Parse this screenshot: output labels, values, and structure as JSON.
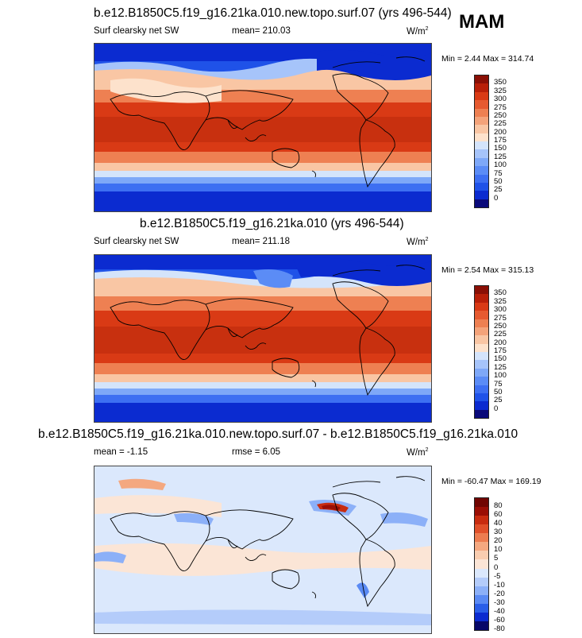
{
  "season": "MAM",
  "panels": [
    {
      "title": "b.e12.B1850C5.f19_g16.21ka.010.new.topo.surf.07 (yrs 496-544)",
      "variable": "Surf clearsky net SW",
      "stat": "mean= 210.03",
      "units": "W/m",
      "units_sup": "2",
      "minmax": "Min =   2.44  Max = 314.74",
      "colorbar_labels": [
        "350",
        "325",
        "300",
        "275",
        "250",
        "225",
        "200",
        "175",
        "150",
        "125",
        "100",
        "75",
        "50",
        "25",
        "0"
      ]
    },
    {
      "title": "b.e12.B1850C5.f19_g16.21ka.010 (yrs 496-544)",
      "variable": "Surf clearsky net SW",
      "stat": "mean= 211.18",
      "units": "W/m",
      "units_sup": "2",
      "minmax": "Min =   2.54  Max = 315.13",
      "colorbar_labels": [
        "350",
        "325",
        "300",
        "275",
        "250",
        "225",
        "200",
        "175",
        "150",
        "125",
        "100",
        "75",
        "50",
        "25",
        "0"
      ]
    },
    {
      "title": "b.e12.B1850C5.f19_g16.21ka.010.new.topo.surf.07 - b.e12.B1850C5.f19_g16.21ka.010",
      "stat_mean": "mean =  -1.15",
      "stat_rmse": "rmse =   6.05",
      "units": "W/m",
      "units_sup": "2",
      "minmax": "Min = -60.47  Max = 169.19",
      "colorbar_labels": [
        "80",
        "60",
        "40",
        "30",
        "20",
        "10",
        "5",
        "0",
        "-5",
        "-10",
        "-20",
        "-30",
        "-40",
        "-60",
        "-80"
      ]
    }
  ],
  "colors": {
    "abs_scale": [
      "#0a0a7a",
      "#0b2bd0",
      "#1f52e8",
      "#3d6ff2",
      "#5b8cf6",
      "#7ea8f8",
      "#a6c4fa",
      "#d4e4fb",
      "#fde2cc",
      "#f9c6a4",
      "#f4a37a",
      "#ee8052",
      "#e65a30",
      "#d93a15",
      "#b81f08",
      "#8a0f05"
    ],
    "diff_scale": [
      "#070768",
      "#0b2bd0",
      "#2a5ee8",
      "#5a8af4",
      "#8cb0f8",
      "#b4ccfa",
      "#dbe8fc",
      "#fbe5d6",
      "#f9cdb0",
      "#f4a880",
      "#ec7c50",
      "#e0502a",
      "#c82c10",
      "#9a0e05",
      "#700502"
    ],
    "coast": "#000000"
  }
}
